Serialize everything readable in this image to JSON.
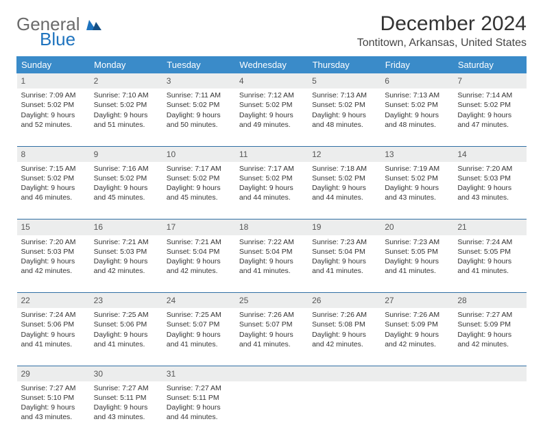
{
  "logo": {
    "line1": "General",
    "line2": "Blue",
    "color1": "#6a6a6a",
    "color2": "#1e73be"
  },
  "title": "December 2024",
  "subtitle": "Tontitown, Arkansas, United States",
  "headers": [
    "Sunday",
    "Monday",
    "Tuesday",
    "Wednesday",
    "Thursday",
    "Friday",
    "Saturday"
  ],
  "header_bg": "#3a8bc9",
  "daynum_bg": "#eceded",
  "rule_color": "#2f6ea3",
  "weeks": [
    [
      {
        "n": "1",
        "sr": "Sunrise: 7:09 AM",
        "ss": "Sunset: 5:02 PM",
        "dl": "Daylight: 9 hours and 52 minutes."
      },
      {
        "n": "2",
        "sr": "Sunrise: 7:10 AM",
        "ss": "Sunset: 5:02 PM",
        "dl": "Daylight: 9 hours and 51 minutes."
      },
      {
        "n": "3",
        "sr": "Sunrise: 7:11 AM",
        "ss": "Sunset: 5:02 PM",
        "dl": "Daylight: 9 hours and 50 minutes."
      },
      {
        "n": "4",
        "sr": "Sunrise: 7:12 AM",
        "ss": "Sunset: 5:02 PM",
        "dl": "Daylight: 9 hours and 49 minutes."
      },
      {
        "n": "5",
        "sr": "Sunrise: 7:13 AM",
        "ss": "Sunset: 5:02 PM",
        "dl": "Daylight: 9 hours and 48 minutes."
      },
      {
        "n": "6",
        "sr": "Sunrise: 7:13 AM",
        "ss": "Sunset: 5:02 PM",
        "dl": "Daylight: 9 hours and 48 minutes."
      },
      {
        "n": "7",
        "sr": "Sunrise: 7:14 AM",
        "ss": "Sunset: 5:02 PM",
        "dl": "Daylight: 9 hours and 47 minutes."
      }
    ],
    [
      {
        "n": "8",
        "sr": "Sunrise: 7:15 AM",
        "ss": "Sunset: 5:02 PM",
        "dl": "Daylight: 9 hours and 46 minutes."
      },
      {
        "n": "9",
        "sr": "Sunrise: 7:16 AM",
        "ss": "Sunset: 5:02 PM",
        "dl": "Daylight: 9 hours and 45 minutes."
      },
      {
        "n": "10",
        "sr": "Sunrise: 7:17 AM",
        "ss": "Sunset: 5:02 PM",
        "dl": "Daylight: 9 hours and 45 minutes."
      },
      {
        "n": "11",
        "sr": "Sunrise: 7:17 AM",
        "ss": "Sunset: 5:02 PM",
        "dl": "Daylight: 9 hours and 44 minutes."
      },
      {
        "n": "12",
        "sr": "Sunrise: 7:18 AM",
        "ss": "Sunset: 5:02 PM",
        "dl": "Daylight: 9 hours and 44 minutes."
      },
      {
        "n": "13",
        "sr": "Sunrise: 7:19 AM",
        "ss": "Sunset: 5:02 PM",
        "dl": "Daylight: 9 hours and 43 minutes."
      },
      {
        "n": "14",
        "sr": "Sunrise: 7:20 AM",
        "ss": "Sunset: 5:03 PM",
        "dl": "Daylight: 9 hours and 43 minutes."
      }
    ],
    [
      {
        "n": "15",
        "sr": "Sunrise: 7:20 AM",
        "ss": "Sunset: 5:03 PM",
        "dl": "Daylight: 9 hours and 42 minutes."
      },
      {
        "n": "16",
        "sr": "Sunrise: 7:21 AM",
        "ss": "Sunset: 5:03 PM",
        "dl": "Daylight: 9 hours and 42 minutes."
      },
      {
        "n": "17",
        "sr": "Sunrise: 7:21 AM",
        "ss": "Sunset: 5:04 PM",
        "dl": "Daylight: 9 hours and 42 minutes."
      },
      {
        "n": "18",
        "sr": "Sunrise: 7:22 AM",
        "ss": "Sunset: 5:04 PM",
        "dl": "Daylight: 9 hours and 41 minutes."
      },
      {
        "n": "19",
        "sr": "Sunrise: 7:23 AM",
        "ss": "Sunset: 5:04 PM",
        "dl": "Daylight: 9 hours and 41 minutes."
      },
      {
        "n": "20",
        "sr": "Sunrise: 7:23 AM",
        "ss": "Sunset: 5:05 PM",
        "dl": "Daylight: 9 hours and 41 minutes."
      },
      {
        "n": "21",
        "sr": "Sunrise: 7:24 AM",
        "ss": "Sunset: 5:05 PM",
        "dl": "Daylight: 9 hours and 41 minutes."
      }
    ],
    [
      {
        "n": "22",
        "sr": "Sunrise: 7:24 AM",
        "ss": "Sunset: 5:06 PM",
        "dl": "Daylight: 9 hours and 41 minutes."
      },
      {
        "n": "23",
        "sr": "Sunrise: 7:25 AM",
        "ss": "Sunset: 5:06 PM",
        "dl": "Daylight: 9 hours and 41 minutes."
      },
      {
        "n": "24",
        "sr": "Sunrise: 7:25 AM",
        "ss": "Sunset: 5:07 PM",
        "dl": "Daylight: 9 hours and 41 minutes."
      },
      {
        "n": "25",
        "sr": "Sunrise: 7:26 AM",
        "ss": "Sunset: 5:07 PM",
        "dl": "Daylight: 9 hours and 41 minutes."
      },
      {
        "n": "26",
        "sr": "Sunrise: 7:26 AM",
        "ss": "Sunset: 5:08 PM",
        "dl": "Daylight: 9 hours and 42 minutes."
      },
      {
        "n": "27",
        "sr": "Sunrise: 7:26 AM",
        "ss": "Sunset: 5:09 PM",
        "dl": "Daylight: 9 hours and 42 minutes."
      },
      {
        "n": "28",
        "sr": "Sunrise: 7:27 AM",
        "ss": "Sunset: 5:09 PM",
        "dl": "Daylight: 9 hours and 42 minutes."
      }
    ],
    [
      {
        "n": "29",
        "sr": "Sunrise: 7:27 AM",
        "ss": "Sunset: 5:10 PM",
        "dl": "Daylight: 9 hours and 43 minutes."
      },
      {
        "n": "30",
        "sr": "Sunrise: 7:27 AM",
        "ss": "Sunset: 5:11 PM",
        "dl": "Daylight: 9 hours and 43 minutes."
      },
      {
        "n": "31",
        "sr": "Sunrise: 7:27 AM",
        "ss": "Sunset: 5:11 PM",
        "dl": "Daylight: 9 hours and 44 minutes."
      },
      null,
      null,
      null,
      null
    ]
  ]
}
